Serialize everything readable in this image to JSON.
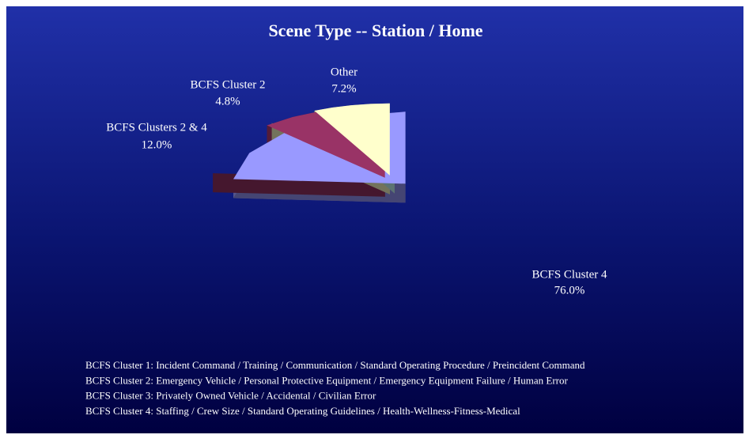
{
  "chart_data": {
    "type": "pie",
    "title": "Scene Type -- Station / Home",
    "categories": [
      "BCFS Cluster 4",
      "BCFS Clusters 2 & 4",
      "BCFS Cluster 2",
      "Other"
    ],
    "values": [
      76.0,
      12.0,
      4.8,
      7.2
    ],
    "value_labels": [
      "76.0%",
      "12.0%",
      "4.8%",
      "7.2%"
    ],
    "colors": [
      "#9999ff",
      "#993366",
      "#ffffcc",
      "#ccffff"
    ],
    "notes": [
      "BCFS Cluster 1:  Incident Command / Training / Communication / Standard Operating Procedure / Preincident Command",
      "BCFS Cluster 2:  Emergency Vehicle / Personal Protective Equipment / Emergency Equipment Failure / Human Error",
      "BCFS Cluster 3:  Privately Owned Vehicle / Accidental / Civilian Error",
      "BCFS Cluster 4:  Staffing / Crew Size / Standard Operating Guidelines / Health-Wellness-Fitness-Medical"
    ]
  }
}
